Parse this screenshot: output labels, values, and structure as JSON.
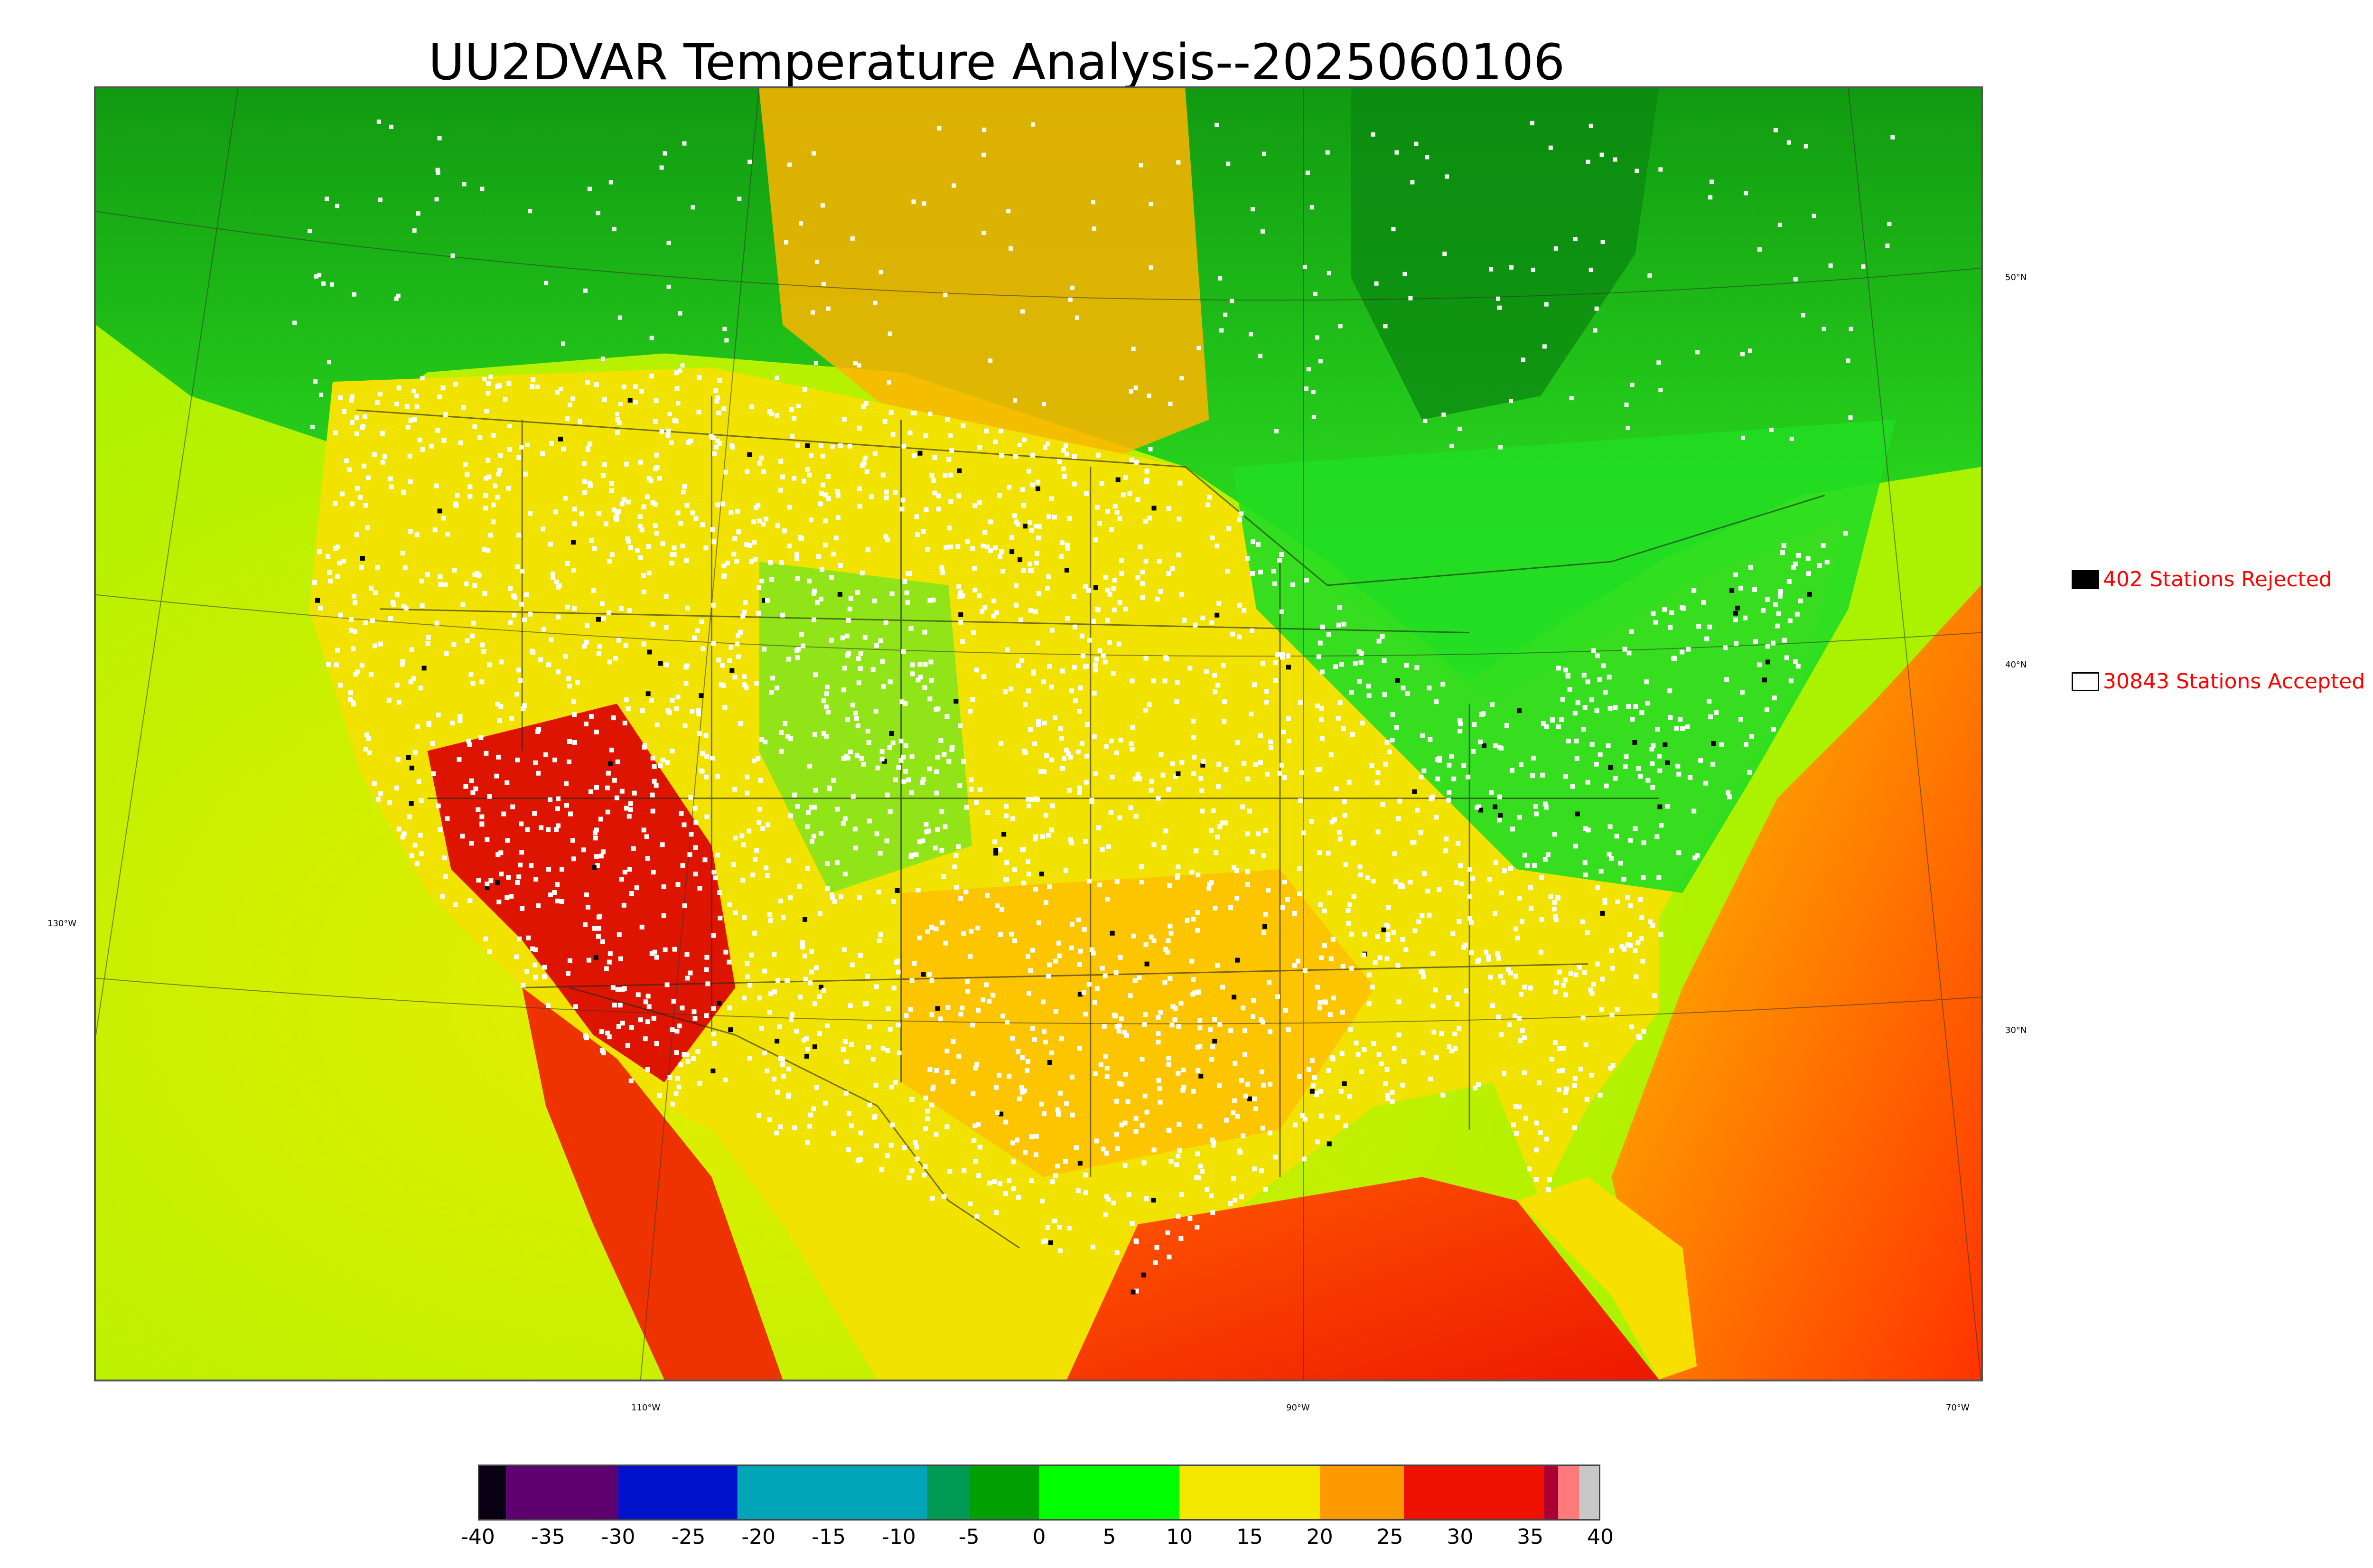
{
  "title": "UU2DVAR Temperature Analysis--2025060106",
  "latitude_labels": [
    "50°N",
    "40°N",
    "30°N"
  ],
  "longitude_labels": [
    "130°W",
    "110°W",
    "90°W",
    "70°W"
  ],
  "legend": {
    "rejected_label": "402 Stations Rejected",
    "rejected_color": "#000000",
    "accepted_label": "30843 Stations Accepted",
    "accepted_color": "#ffffff"
  },
  "colorbar": {
    "ticks": [
      "-40",
      "-35",
      "-30",
      "-25",
      "-20",
      "-15",
      "-10",
      "-5",
      "0",
      "5",
      "10",
      "15",
      "20",
      "25",
      "30",
      "35",
      "40"
    ],
    "range": [
      -40,
      40
    ],
    "stops": [
      {
        "from": -40,
        "to": -38,
        "color": "#0a0014"
      },
      {
        "from": -38,
        "to": -30,
        "color": "#5e0070"
      },
      {
        "from": -30,
        "to": -21.5,
        "color": "#0012cc"
      },
      {
        "from": -21.5,
        "to": -8,
        "color": "#00a6b8"
      },
      {
        "from": -8,
        "to": -5,
        "color": "#009a55"
      },
      {
        "from": -5,
        "to": 0,
        "color": "#00a000"
      },
      {
        "from": 0,
        "to": 10,
        "color": "#00ff00"
      },
      {
        "from": 10,
        "to": 20,
        "color": "#f5e800"
      },
      {
        "from": 20,
        "to": 26,
        "color": "#ff9900"
      },
      {
        "from": 26,
        "to": 36,
        "color": "#ee1100"
      },
      {
        "from": 36,
        "to": 37,
        "color": "#aa0033"
      },
      {
        "from": 37,
        "to": 38.5,
        "color": "#ff7a7a"
      },
      {
        "from": 38.5,
        "to": 40,
        "color": "#c8c8c8"
      }
    ]
  },
  "colors": {
    "cold_north": "#12a012",
    "cool": "#22e022",
    "mild": "#f2ea00",
    "warm": "#ffb000",
    "hot": "#ee1a00",
    "water": "#a0ff00"
  }
}
